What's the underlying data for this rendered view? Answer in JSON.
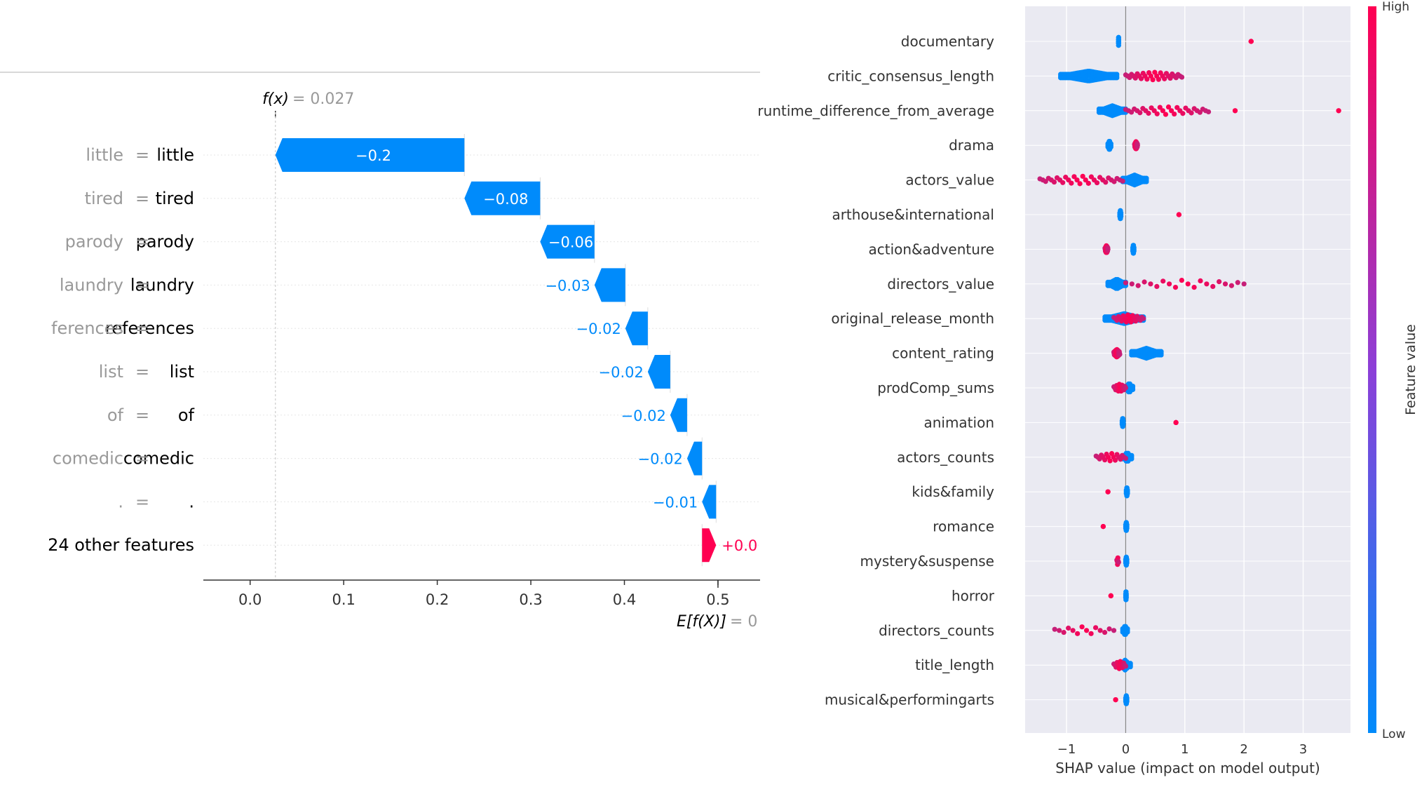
{
  "waterfall": {
    "fx_label": "f(x)",
    "fx_value": "= 0.027",
    "ex_label": "E[f(X)]",
    "ex_value": "= 0",
    "colors": {
      "negative": "#008bfb",
      "positive": "#ff0051",
      "feature_name": "#999999",
      "feature_value": "#000000"
    }
  },
  "summary": {
    "colorbar": {
      "high_label": "High",
      "low_label": "Low",
      "title": "Feature value",
      "high_color": "#ff0052",
      "low_color": "#008bfb"
    }
  },
  "chart_data": [
    {
      "type": "bar",
      "subtype": "waterfall",
      "xlim": [
        -0.05,
        0.545
      ],
      "xticks": [
        0.0,
        0.1,
        0.2,
        0.3,
        0.4,
        0.5
      ],
      "xtick_labels": [
        "0.0",
        "0.1",
        "0.2",
        "0.3",
        "0.4",
        "0.5"
      ],
      "fx": 0.027,
      "start_value": 0.5,
      "bars": [
        {
          "name": "little",
          "value": "little",
          "label": "−0.2",
          "start": 0.229,
          "end": 0.027,
          "sign": "negative"
        },
        {
          "name": "tired",
          "value": "tired",
          "label": "−0.08",
          "start": 0.31,
          "end": 0.229,
          "sign": "negative"
        },
        {
          "name": "parody",
          "value": "parody",
          "label": "−0.06",
          "start": 0.368,
          "end": 0.31,
          "sign": "negative"
        },
        {
          "name": "laundry",
          "value": "laundry",
          "label": "−0.03",
          "start": 0.401,
          "end": 0.368,
          "sign": "negative"
        },
        {
          "name": "ferences",
          "value": "references",
          "label": "−0.02",
          "start": 0.425,
          "end": 0.401,
          "sign": "negative"
        },
        {
          "name": "list",
          "value": "list",
          "label": "−0.02",
          "start": 0.449,
          "end": 0.425,
          "sign": "negative"
        },
        {
          "name": "of",
          "value": "of",
          "label": "−0.02",
          "start": 0.467,
          "end": 0.449,
          "sign": "negative"
        },
        {
          "name": "comedic",
          "value": "comedic",
          "label": "−0.02",
          "start": 0.483,
          "end": 0.467,
          "sign": "negative"
        },
        {
          "name": ".",
          "value": ".",
          "label": "−0.01",
          "start": 0.498,
          "end": 0.483,
          "sign": "negative"
        },
        {
          "name": "24 other features",
          "value": "",
          "label": "+0.0",
          "start": 0.483,
          "end": 0.498,
          "sign": "positive"
        }
      ]
    },
    {
      "type": "scatter",
      "subtype": "beeswarm",
      "xlabel": "SHAP value (impact on model output)",
      "xlim": [
        -1.7,
        3.8
      ],
      "xticks": [
        -1,
        0,
        1,
        2,
        3
      ],
      "xtick_labels": [
        "−1",
        "0",
        "1",
        "2",
        "3"
      ],
      "grid": true,
      "features": [
        {
          "name": "documentary",
          "low": [
            -0.12,
            -0.12
          ],
          "high": [
            [
              2.12,
              2.12,
              4
            ]
          ]
        },
        {
          "name": "critic_consensus_length",
          "low": [
            -1.1,
            -0.15
          ],
          "high": [
            [
              0.0,
              0.95,
              30
            ]
          ]
        },
        {
          "name": "runtime_difference_from_average",
          "low": [
            -0.45,
            0.0
          ],
          "high": [
            [
              0.0,
              1.4,
              30
            ],
            [
              1.85,
              1.85,
              2
            ],
            [
              3.6,
              3.6,
              2
            ]
          ]
        },
        {
          "name": "drama",
          "low": [
            -0.3,
            -0.25
          ],
          "high": [
            [
              0.15,
              0.2,
              20
            ]
          ]
        },
        {
          "name": "actors_value",
          "low": [
            -0.05,
            0.35
          ],
          "high": [
            [
              -1.45,
              -0.05,
              30
            ]
          ]
        },
        {
          "name": "arthouse&international",
          "low": [
            -0.1,
            -0.08
          ],
          "high": [
            [
              0.9,
              0.9,
              3
            ]
          ]
        },
        {
          "name": "action&adventure",
          "low": [
            0.12,
            0.14
          ],
          "high": [
            [
              -0.35,
              -0.3,
              14
            ]
          ]
        },
        {
          "name": "directors_value",
          "low": [
            -0.3,
            0.0
          ],
          "high": [
            [
              0.0,
              2.0,
              20
            ]
          ]
        },
        {
          "name": "original_release_month",
          "low": [
            -0.35,
            0.3
          ],
          "high": [
            [
              -0.2,
              0.3,
              20
            ]
          ]
        },
        {
          "name": "content_rating",
          "low": [
            0.1,
            0.6
          ],
          "high": [
            [
              -0.2,
              -0.1,
              24
            ]
          ]
        },
        {
          "name": "prodComp_sums",
          "low": [
            0.0,
            0.12
          ],
          "high": [
            [
              -0.2,
              0.0,
              14
            ]
          ]
        },
        {
          "name": "animation",
          "low": [
            -0.06,
            -0.04
          ],
          "high": [
            [
              0.85,
              0.85,
              3
            ]
          ]
        },
        {
          "name": "actors_counts",
          "low": [
            -0.05,
            0.1
          ],
          "high": [
            [
              -0.5,
              0.0,
              18
            ]
          ]
        },
        {
          "name": "kids&family",
          "low": [
            0.01,
            0.03
          ],
          "high": [
            [
              -0.3,
              -0.3,
              3
            ]
          ]
        },
        {
          "name": "romance",
          "low": [
            0.0,
            0.02
          ],
          "high": [
            [
              -0.38,
              -0.38,
              3
            ]
          ]
        },
        {
          "name": "mystery&suspense",
          "low": [
            0.0,
            0.02
          ],
          "high": [
            [
              -0.15,
              -0.12,
              6
            ]
          ]
        },
        {
          "name": "horror",
          "low": [
            0.0,
            0.01
          ],
          "high": [
            [
              -0.25,
              -0.25,
              3
            ]
          ]
        },
        {
          "name": "directors_counts",
          "low": [
            -0.05,
            0.03
          ],
          "high": [
            [
              -1.2,
              -0.2,
              14
            ]
          ]
        },
        {
          "name": "title_length",
          "low": [
            -0.1,
            0.08
          ],
          "high": [
            [
              -0.2,
              0.0,
              12
            ]
          ]
        },
        {
          "name": "musical&performingarts",
          "low": [
            0.0,
            0.02
          ],
          "high": [
            [
              -0.17,
              -0.17,
              3
            ]
          ]
        }
      ]
    }
  ]
}
